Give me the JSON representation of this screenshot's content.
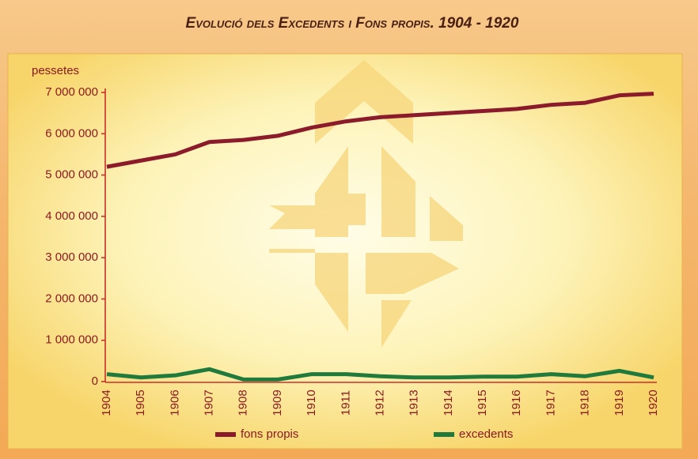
{
  "chart_data": {
    "type": "line",
    "title": "Evolució dels Excedents i Fons propis. 1904 - 1920",
    "y_label": "pessetes",
    "categories": [
      "1904",
      "1905",
      "1906",
      "1907",
      "1908",
      "1909",
      "1910",
      "1911",
      "1912",
      "1913",
      "1914",
      "1915",
      "1916",
      "1917",
      "1918",
      "1919",
      "1920"
    ],
    "series": [
      {
        "name": "fons propis",
        "color": "#8b1a2b",
        "values": [
          5200000,
          5350000,
          5500000,
          5800000,
          5850000,
          5950000,
          6150000,
          6300000,
          6400000,
          6450000,
          6500000,
          6550000,
          6600000,
          6700000,
          6750000,
          6930000,
          6970000
        ]
      },
      {
        "name": "excedents",
        "color": "#1f7a3c",
        "values": [
          180000,
          100000,
          150000,
          300000,
          50000,
          50000,
          180000,
          180000,
          130000,
          100000,
          100000,
          120000,
          120000,
          180000,
          130000,
          260000,
          100000
        ]
      }
    ],
    "ylim": [
      0,
      7000000
    ],
    "yticks": [
      0,
      {
        "value": 1000000,
        "label": "1 000 000"
      },
      {
        "value": 2000000,
        "label": "2 000 000"
      },
      {
        "value": 3000000,
        "label": "3 000 000"
      },
      {
        "value": 4000000,
        "label": "4 000 000"
      },
      {
        "value": 5000000,
        "label": "5 000 000"
      },
      {
        "value": 6000000,
        "label": "6 000 000"
      },
      {
        "value": 7000000,
        "label": "7 000 000"
      }
    ],
    "grid": false
  }
}
